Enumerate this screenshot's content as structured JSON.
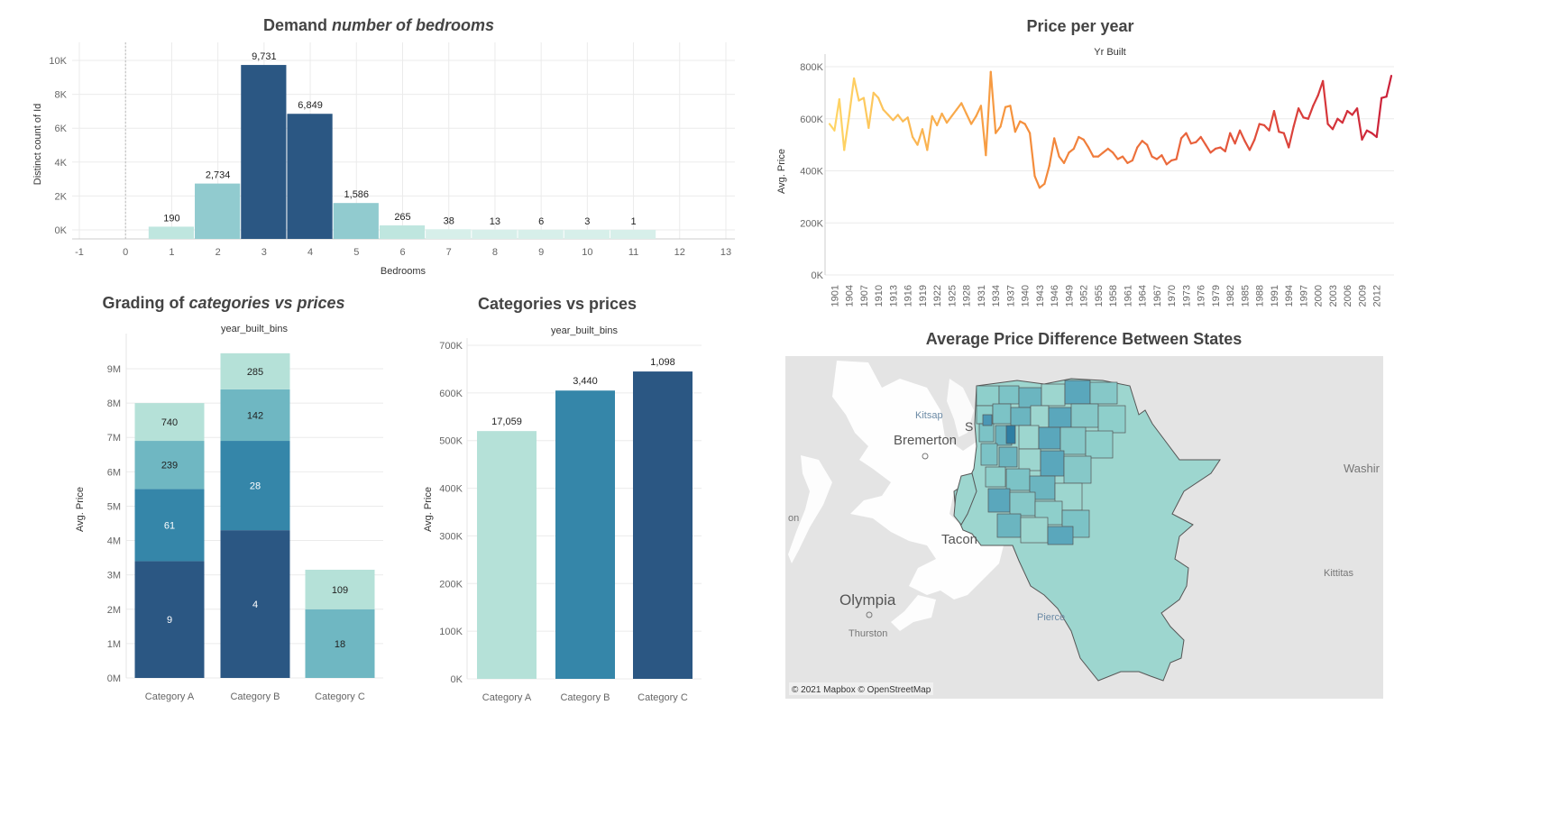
{
  "colors": {
    "c1": "#2b5783",
    "c2": "#3586a9",
    "c3": "#6fb7c2",
    "c4": "#b5e1d8",
    "c5": "#91cbcf",
    "title": "#444444"
  },
  "bedrooms": {
    "title_a": "Demand ",
    "title_b": "number of bedrooms",
    "xlabel": "Bedrooms",
    "ylabel": "Distinct count of Id",
    "xticks": [
      "-1",
      "0",
      "1",
      "2",
      "3",
      "4",
      "5",
      "6",
      "7",
      "8",
      "9",
      "10",
      "11",
      "12",
      "13"
    ],
    "yticks": [
      "0K",
      "2K",
      "4K",
      "6K",
      "8K",
      "10K"
    ],
    "labels": [
      "190",
      "2,734",
      "9,731",
      "6,849",
      "1,586",
      "265",
      "38",
      "13",
      "6",
      "3",
      "1"
    ]
  },
  "price_year": {
    "title": "Price per year",
    "subtitle": "Yr Built",
    "ylabel": "Avg. Price",
    "yticks": [
      "0K",
      "200K",
      "400K",
      "600K",
      "800K"
    ],
    "xticks": [
      "1901",
      "1904",
      "1907",
      "1910",
      "1913",
      "1916",
      "1919",
      "1922",
      "1925",
      "1928",
      "1931",
      "1934",
      "1937",
      "1940",
      "1943",
      "1946",
      "1949",
      "1952",
      "1955",
      "1958",
      "1961",
      "1964",
      "1967",
      "1970",
      "1973",
      "1976",
      "1979",
      "1982",
      "1985",
      "1988",
      "1991",
      "1994",
      "1997",
      "2000",
      "2003",
      "2006",
      "2009",
      "2012"
    ]
  },
  "grading": {
    "title_a": "Grading of ",
    "title_b": "categories vs prices",
    "subtitle": "year_built_bins",
    "ylabel": "Avg. Price",
    "yticks": [
      "0M",
      "1M",
      "2M",
      "3M",
      "4M",
      "5M",
      "6M",
      "7M",
      "8M",
      "9M"
    ],
    "categories": [
      "Category A",
      "Category B",
      "Category C"
    ],
    "labels": [
      [
        "9",
        "61",
        "239",
        "740"
      ],
      [
        "4",
        "28",
        "142",
        "285"
      ],
      [
        "18",
        "109"
      ]
    ]
  },
  "catprice": {
    "title": "Categories vs prices",
    "subtitle": "year_built_bins",
    "ylabel": "Avg. Price",
    "yticks": [
      "0K",
      "100K",
      "200K",
      "300K",
      "400K",
      "500K",
      "600K",
      "700K"
    ],
    "categories": [
      "Category A",
      "Category B",
      "Category C"
    ],
    "labels": [
      "17,059",
      "3,440",
      "1,098"
    ]
  },
  "map": {
    "title": "Average Price Difference Between States",
    "credit": "© 2021 Mapbox © OpenStreetMap",
    "places": {
      "kitsap": "Kitsap",
      "bremerton": "Bremerton",
      "washington": "Washir",
      "tacoma": "Tacon",
      "kittitas": "Kittitas",
      "pierce": "Pierce",
      "olympia": "Olympia",
      "thurston": "Thurston",
      "seattle": "S",
      "mason": "on"
    }
  },
  "chart_data": [
    {
      "type": "bar",
      "title": "Demand number of bedrooms",
      "xlabel": "Bedrooms",
      "ylabel": "Distinct count of Id",
      "categories": [
        1,
        2,
        3,
        4,
        5,
        6,
        7,
        8,
        9,
        10,
        11
      ],
      "values": [
        190,
        2734,
        9731,
        6849,
        1586,
        265,
        38,
        13,
        6,
        3,
        1
      ],
      "xlim": [
        -1,
        13
      ],
      "ylim": [
        0,
        10000
      ]
    },
    {
      "type": "line",
      "title": "Price per year",
      "xlabel": "Yr Built",
      "ylabel": "Avg. Price",
      "ylim": [
        0,
        800000
      ],
      "x": [
        1900,
        1901,
        1902,
        1903,
        1904,
        1905,
        1906,
        1907,
        1908,
        1909,
        1910,
        1911,
        1912,
        1913,
        1914,
        1915,
        1916,
        1917,
        1918,
        1919,
        1920,
        1921,
        1922,
        1923,
        1924,
        1925,
        1926,
        1927,
        1928,
        1929,
        1930,
        1931,
        1932,
        1933,
        1934,
        1935,
        1936,
        1937,
        1938,
        1939,
        1940,
        1941,
        1942,
        1943,
        1944,
        1945,
        1946,
        1947,
        1948,
        1949,
        1950,
        1951,
        1952,
        1953,
        1954,
        1955,
        1956,
        1957,
        1958,
        1959,
        1960,
        1961,
        1962,
        1963,
        1964,
        1965,
        1966,
        1967,
        1968,
        1969,
        1970,
        1971,
        1972,
        1973,
        1974,
        1975,
        1976,
        1977,
        1978,
        1979,
        1980,
        1981,
        1982,
        1983,
        1984,
        1985,
        1986,
        1987,
        1988,
        1989,
        1990,
        1991,
        1992,
        1993,
        1994,
        1995,
        1996,
        1997,
        1998,
        1999,
        2000,
        2001,
        2002,
        2003,
        2004,
        2005,
        2006,
        2007,
        2008,
        2009,
        2010,
        2011,
        2012,
        2013,
        2014,
        2015
      ],
      "values": [
        580000,
        555000,
        675000,
        480000,
        610000,
        755000,
        670000,
        680000,
        565000,
        700000,
        680000,
        635000,
        615000,
        595000,
        615000,
        590000,
        605000,
        530000,
        500000,
        560000,
        480000,
        610000,
        575000,
        620000,
        585000,
        610000,
        635000,
        660000,
        620000,
        580000,
        610000,
        650000,
        460000,
        780000,
        545000,
        570000,
        645000,
        650000,
        550000,
        590000,
        580000,
        545000,
        380000,
        335000,
        350000,
        420000,
        525000,
        455000,
        430000,
        470000,
        485000,
        530000,
        520000,
        490000,
        455000,
        455000,
        470000,
        485000,
        470000,
        445000,
        455000,
        430000,
        440000,
        490000,
        515000,
        500000,
        455000,
        445000,
        460000,
        425000,
        440000,
        445000,
        525000,
        545000,
        505000,
        510000,
        530000,
        500000,
        470000,
        485000,
        490000,
        475000,
        545000,
        505000,
        555000,
        515000,
        480000,
        520000,
        580000,
        575000,
        555000,
        630000,
        550000,
        545000,
        490000,
        570000,
        640000,
        605000,
        600000,
        650000,
        690000,
        745000,
        580000,
        560000,
        600000,
        585000,
        630000,
        615000,
        640000,
        520000,
        555000,
        545000,
        530000,
        680000,
        685000,
        765000
      ]
    },
    {
      "type": "bar",
      "stacked": true,
      "title": "Grading of categories vs prices",
      "xlabel": "year_built_bins",
      "ylabel": "Avg. Price",
      "categories": [
        "Category A",
        "Category B",
        "Category C"
      ],
      "ylim": [
        0,
        9500000
      ],
      "segments": [
        [
          {
            "label": "9",
            "value": 3400000
          },
          {
            "label": "61",
            "value": 2100000
          },
          {
            "label": "239",
            "value": 1400000
          },
          {
            "label": "740",
            "value": 1100000
          }
        ],
        [
          {
            "label": "4",
            "value": 4300000
          },
          {
            "label": "28",
            "value": 2600000
          },
          {
            "label": "142",
            "value": 1500000
          },
          {
            "label": "285",
            "value": 1050000
          }
        ],
        [
          {
            "label": "18",
            "value": 2000000
          },
          {
            "label": "109",
            "value": 1150000
          }
        ]
      ]
    },
    {
      "type": "bar",
      "title": "Categories vs prices",
      "xlabel": "year_built_bins",
      "ylabel": "Avg. Price",
      "categories": [
        "Category A",
        "Category B",
        "Category C"
      ],
      "values": [
        520000,
        605000,
        645000
      ],
      "labels": [
        "17,059",
        "3,440",
        "1,098"
      ],
      "ylim": [
        0,
        700000
      ]
    }
  ]
}
